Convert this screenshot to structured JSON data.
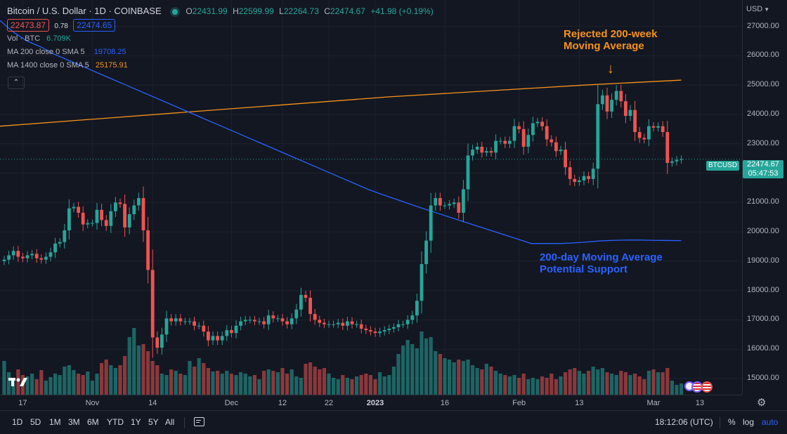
{
  "header": {
    "title": "Bitcoin / U.S. Dollar · 1D · COINBASE",
    "ohlc": {
      "o_label": "O",
      "o": "22431.99",
      "h_label": "H",
      "h": "22599.99",
      "l_label": "L",
      "l": "22264.73",
      "c_label": "C",
      "c": "22474.67",
      "change": "+41.98 (+0.19%)"
    },
    "sell_price": "22473.87",
    "spread": "0.78",
    "buy_price": "22474.65"
  },
  "indicators": {
    "vol": {
      "label": "Vol · BTC",
      "value": "6.709K"
    },
    "ma200": {
      "label": "MA 200 close 0 SMA 5",
      "value": "19708.25",
      "color": "#2962ff"
    },
    "ma1400": {
      "label": "MA 1400 close 0 SMA 5",
      "value": "25175.91",
      "color": "#f7931a"
    }
  },
  "currency": "USD",
  "price_tag": {
    "symbol": "BTCUSD",
    "price": "22474.67",
    "countdown": "05:47:53"
  },
  "annotations": {
    "top_line1": "Rejected 200-week",
    "top_line2": "Moving Average",
    "bottom_line1": "200-day Moving Average",
    "bottom_line2": "Potential Support"
  },
  "timeframes": [
    "1D",
    "5D",
    "1M",
    "3M",
    "6M",
    "YTD",
    "1Y",
    "5Y",
    "All"
  ],
  "clock": "18:12:06 (UTC)",
  "bottom_right": {
    "percent": "%",
    "log": "log",
    "auto": "auto"
  },
  "colors": {
    "up": "#26a69a",
    "down": "#ef5350",
    "accent_orange": "#f7931a",
    "accent_blue": "#2962ff"
  },
  "chart_data": {
    "type": "candlestick",
    "y_ticks": [
      15000,
      16000,
      17000,
      18000,
      19000,
      20000,
      21000,
      22000,
      23000,
      24000,
      25000,
      26000,
      27000
    ],
    "y_tick_labels": [
      "15000.00",
      "16000.00",
      "17000.00",
      "18000.00",
      "19000.00",
      "20000.00",
      "21000.00",
      "22000.00",
      "23000.00",
      "24000.00",
      "25000.00",
      "26000.00",
      "27000.00"
    ],
    "ylim": [
      14450,
      27900
    ],
    "x_tick_labels": [
      {
        "label": "17",
        "i": 4
      },
      {
        "label": "Nov",
        "i": 19
      },
      {
        "label": "14",
        "i": 32
      },
      {
        "label": "Dec",
        "i": 49
      },
      {
        "label": "12",
        "i": 60
      },
      {
        "label": "22",
        "i": 70
      },
      {
        "label": "2023",
        "i": 80
      },
      {
        "label": "16",
        "i": 95
      },
      {
        "label": "Feb",
        "i": 111
      },
      {
        "label": "13",
        "i": 124
      },
      {
        "label": "Mar",
        "i": 140
      },
      {
        "label": "13",
        "i": 150
      }
    ],
    "closes": [
      19050,
      19200,
      19350,
      19150,
      19100,
      19200,
      19250,
      19100,
      19050,
      19150,
      19300,
      19600,
      19650,
      20050,
      20800,
      20850,
      20650,
      20250,
      20300,
      20300,
      20750,
      20400,
      20200,
      20700,
      21000,
      20950,
      20150,
      20600,
      20900,
      21150,
      20050,
      18700,
      16400,
      16050,
      16500,
      17050,
      16950,
      17050,
      16950,
      16950,
      16950,
      16800,
      16800,
      16600,
      16300,
      16450,
      16300,
      16450,
      16650,
      16550,
      16800,
      16950,
      17000,
      17000,
      16950,
      16950,
      16850,
      17150,
      17050,
      17050,
      16950,
      16850,
      17050,
      17350,
      17850,
      17750,
      17200,
      17000,
      16900,
      16850,
      16850,
      16850,
      16900,
      16800,
      16950,
      16850,
      16850,
      16700,
      16650,
      16600,
      16550,
      16600,
      16650,
      16700,
      16750,
      16850,
      16850,
      17000,
      17150,
      17650,
      18900,
      19700,
      20900,
      21150,
      20900,
      20900,
      20950,
      21000,
      20650,
      21450,
      22600,
      22800,
      22900,
      22700,
      22750,
      22700,
      23100,
      23100,
      23000,
      23100,
      23600,
      23500,
      22900,
      23300,
      23700,
      23750,
      23600,
      23150,
      23050,
      22750,
      22800,
      22200,
      21800,
      21700,
      21750,
      21900,
      21800,
      22150,
      24350,
      24650,
      24100,
      24500,
      24800,
      24450,
      23950,
      24150,
      23400,
      23200,
      23150,
      23600,
      23550,
      23600,
      23400,
      22350,
      22400,
      22450,
      22475
    ],
    "opens_prev_close": true,
    "ma_200_day": [
      27200,
      26800,
      26500,
      26300,
      26050,
      25850,
      25650,
      25450,
      25250,
      25050,
      24850,
      24650,
      24450,
      24250,
      24050,
      23850,
      23650,
      23450,
      23250,
      23050,
      22850,
      22650,
      22450,
      22250,
      22050,
      21850,
      21650,
      21450,
      21280,
      21120,
      20960,
      20800,
      20650,
      20500,
      20350,
      20200,
      20050,
      19900,
      19750,
      19600,
      19600,
      19600,
      19620,
      19650,
      19690,
      19710,
      19720,
      19720,
      19710,
      19705,
      19700
    ],
    "ma_200_week": [
      23600,
      23850,
      24100,
      24350,
      24600,
      24800,
      25000,
      25170
    ],
    "volume_relative": [
      0.48,
      0.32,
      0.2,
      0.36,
      0.28,
      0.26,
      0.3,
      0.22,
      0.35,
      0.2,
      0.25,
      0.3,
      0.28,
      0.4,
      0.42,
      0.35,
      0.3,
      0.28,
      0.33,
      0.2,
      0.3,
      0.45,
      0.5,
      0.42,
      0.38,
      0.42,
      0.55,
      0.82,
      0.95,
      0.7,
      0.72,
      0.62,
      0.48,
      0.42,
      0.3,
      0.28,
      0.36,
      0.34,
      0.3,
      0.28,
      0.48,
      0.4,
      0.52,
      0.45,
      0.38,
      0.33,
      0.34,
      0.3,
      0.34,
      0.3,
      0.28,
      0.32,
      0.3,
      0.26,
      0.28,
      0.22,
      0.34,
      0.36,
      0.34,
      0.32,
      0.38,
      0.3,
      0.36,
      0.26,
      0.24,
      0.44,
      0.46,
      0.4,
      0.36,
      0.38,
      0.3,
      0.24,
      0.22,
      0.28,
      0.24,
      0.22,
      0.26,
      0.28,
      0.3,
      0.28,
      0.22,
      0.32,
      0.26,
      0.28,
      0.4,
      0.58,
      0.7,
      0.78,
      0.72,
      0.66,
      0.9,
      0.8,
      0.82,
      0.62,
      0.58,
      0.52,
      0.5,
      0.46,
      0.5,
      0.48,
      0.5,
      0.42,
      0.38,
      0.36,
      0.44,
      0.4,
      0.34,
      0.3,
      0.28,
      0.26,
      0.28,
      0.24,
      0.3,
      0.22,
      0.24,
      0.22,
      0.26,
      0.24,
      0.3,
      0.22,
      0.26,
      0.32,
      0.36,
      0.38,
      0.34,
      0.3,
      0.34,
      0.4,
      0.36,
      0.38,
      0.32,
      0.3,
      0.28,
      0.34,
      0.32,
      0.28,
      0.3,
      0.26,
      0.22,
      0.34,
      0.36,
      0.32,
      0.32,
      0.38,
      0.2,
      0.14,
      0.16
    ]
  }
}
